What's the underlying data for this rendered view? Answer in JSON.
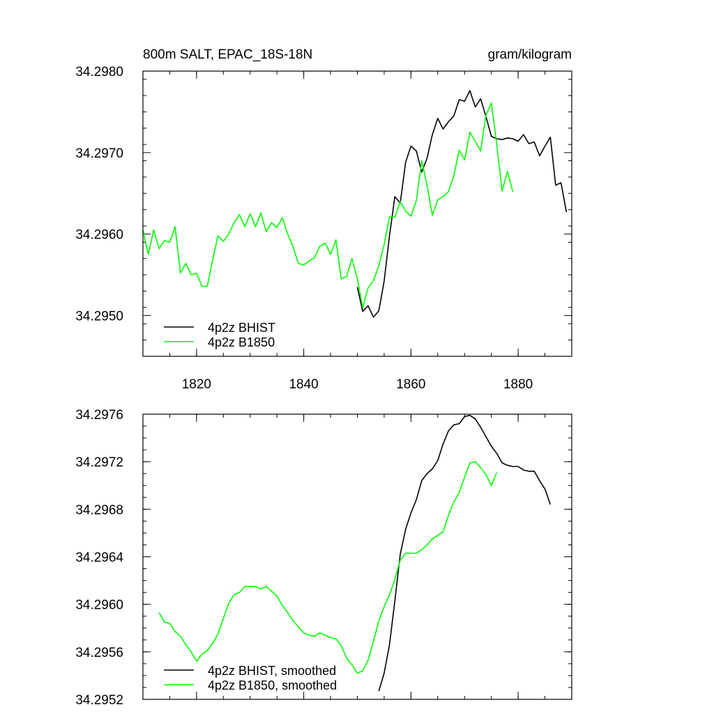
{
  "colors": {
    "bhist": "#000000",
    "b1850": "#00ff00"
  },
  "chart_data": [
    {
      "type": "line",
      "title": "800m SALT, EPAC_18S-18N",
      "units": "gram/kilogram",
      "xlim": [
        1810,
        1890
      ],
      "ylim": [
        34.2945,
        34.298
      ],
      "xticks": [
        1820,
        1840,
        1860,
        1880
      ],
      "xtick_labels": [
        "1820",
        "1840",
        "1860",
        "1880"
      ],
      "yticks": [
        34.295,
        34.296,
        34.297,
        34.298
      ],
      "ytick_labels": [
        "34.2950",
        "34.2960",
        "34.2970",
        "34.2980"
      ],
      "legend_position": "bottom-left",
      "series": [
        {
          "name": "4p2z BHIST",
          "color_key": "bhist",
          "x": [
            1850,
            1851,
            1852,
            1853,
            1854,
            1855,
            1856,
            1857,
            1858,
            1859,
            1860,
            1861,
            1862,
            1863,
            1864,
            1865,
            1866,
            1867,
            1868,
            1869,
            1870,
            1871,
            1872,
            1873,
            1874,
            1875,
            1876,
            1877,
            1878,
            1879,
            1880,
            1881,
            1882,
            1883,
            1884,
            1885,
            1886,
            1887,
            1888,
            1889
          ],
          "y": [
            34.29535,
            34.29505,
            34.29512,
            34.29498,
            34.29506,
            34.29542,
            34.29598,
            34.29646,
            34.29638,
            34.29688,
            34.29708,
            34.29702,
            34.29676,
            34.29693,
            34.29722,
            34.29742,
            34.29729,
            34.29738,
            34.29745,
            34.29765,
            34.29763,
            34.29776,
            34.29756,
            34.29766,
            34.29744,
            34.2972,
            34.29717,
            34.29716,
            34.29718,
            34.29717,
            34.29714,
            34.29722,
            34.29711,
            34.29713,
            34.29696,
            34.29708,
            34.29719,
            34.2966,
            34.29663,
            34.29627
          ]
        },
        {
          "name": "4p2z B1850",
          "color_key": "b1850",
          "x": [
            1810,
            1811,
            1812,
            1813,
            1814,
            1815,
            1816,
            1817,
            1818,
            1819,
            1820,
            1821,
            1822,
            1823,
            1824,
            1825,
            1826,
            1827,
            1828,
            1829,
            1830,
            1831,
            1832,
            1833,
            1834,
            1835,
            1836,
            1837,
            1838,
            1839,
            1840,
            1841,
            1842,
            1843,
            1844,
            1845,
            1846,
            1847,
            1848,
            1849,
            1850,
            1851,
            1852,
            1853,
            1854,
            1855,
            1856,
            1857,
            1858,
            1859,
            1860,
            1861,
            1862,
            1863,
            1864,
            1865,
            1866,
            1867,
            1868,
            1869,
            1870,
            1871,
            1872,
            1873,
            1874,
            1875,
            1876,
            1877,
            1878,
            1879
          ],
          "y": [
            34.29605,
            34.29575,
            34.29605,
            34.29582,
            34.29592,
            34.2959,
            34.29609,
            34.29552,
            34.29564,
            34.2955,
            34.29552,
            34.29536,
            34.29536,
            34.29568,
            34.29598,
            34.29591,
            34.296,
            34.29614,
            34.29624,
            34.29609,
            34.29625,
            34.29609,
            34.29626,
            34.29603,
            34.29614,
            34.29608,
            34.2962,
            34.296,
            34.29584,
            34.29564,
            34.29562,
            34.29567,
            34.29571,
            34.29585,
            34.29589,
            34.29575,
            34.29593,
            34.29545,
            34.29548,
            34.2957,
            34.29545,
            34.2951,
            34.29534,
            34.29543,
            34.29561,
            34.29587,
            34.29621,
            34.29621,
            34.2964,
            34.29628,
            34.29622,
            34.29641,
            34.2969,
            34.2966,
            34.29623,
            34.29642,
            34.29646,
            34.29652,
            34.29672,
            34.29703,
            34.29691,
            34.29725,
            34.29714,
            34.29702,
            34.29746,
            34.29761,
            34.2971,
            34.29653,
            34.29677,
            34.29652
          ]
        }
      ]
    },
    {
      "type": "line",
      "xlim": [
        1810,
        1890
      ],
      "ylim": [
        34.2952,
        34.2976
      ],
      "xticks": [
        1820,
        1840,
        1860,
        1880
      ],
      "yticks": [
        34.2952,
        34.2956,
        34.296,
        34.2964,
        34.2968,
        34.2972,
        34.2976
      ],
      "ytick_labels": [
        "34.2952",
        "34.2956",
        "34.2960",
        "34.2964",
        "34.2968",
        "34.2972",
        "34.2976"
      ],
      "legend_position": "bottom-left",
      "series": [
        {
          "name": "4p2z BHIST, smoothed",
          "color_key": "bhist",
          "x": [
            1854,
            1855,
            1856,
            1857,
            1858,
            1859,
            1860,
            1861,
            1862,
            1863,
            1864,
            1865,
            1866,
            1867,
            1868,
            1869,
            1870,
            1871,
            1872,
            1873,
            1874,
            1875,
            1876,
            1877,
            1878,
            1879,
            1880,
            1881,
            1882,
            1883,
            1884,
            1885,
            1886
          ],
          "y": [
            34.29527,
            34.29542,
            34.29566,
            34.29603,
            34.29642,
            34.29663,
            34.29677,
            34.29688,
            34.29704,
            34.2971,
            34.29714,
            34.29721,
            34.29735,
            34.29746,
            34.29751,
            34.29752,
            34.29758,
            34.29759,
            34.29756,
            34.29749,
            34.29741,
            34.29733,
            34.29727,
            34.29719,
            34.29717,
            34.29716,
            34.29716,
            34.29713,
            34.29712,
            34.29712,
            34.29704,
            34.29697,
            34.29684
          ]
        },
        {
          "name": "4p2z B1850, smoothed",
          "color_key": "b1850",
          "x": [
            1813,
            1814,
            1815,
            1816,
            1817,
            1818,
            1819,
            1820,
            1821,
            1822,
            1823,
            1824,
            1825,
            1826,
            1827,
            1828,
            1829,
            1830,
            1831,
            1832,
            1833,
            1834,
            1835,
            1836,
            1837,
            1838,
            1839,
            1840,
            1841,
            1842,
            1843,
            1844,
            1845,
            1846,
            1847,
            1848,
            1849,
            1850,
            1851,
            1852,
            1853,
            1854,
            1855,
            1856,
            1857,
            1858,
            1859,
            1860,
            1861,
            1862,
            1863,
            1864,
            1865,
            1866,
            1867,
            1868,
            1869,
            1870,
            1871,
            1872,
            1873,
            1874,
            1875,
            1876
          ],
          "y": [
            34.29593,
            34.29585,
            34.29584,
            34.29577,
            34.29573,
            34.29566,
            34.2956,
            34.29552,
            34.29558,
            34.29561,
            34.29567,
            34.29575,
            34.29588,
            34.29601,
            34.29608,
            34.2961,
            34.29615,
            34.29615,
            34.29615,
            34.29613,
            34.29615,
            34.29611,
            34.29607,
            34.29599,
            34.29593,
            34.29586,
            34.29581,
            34.29576,
            34.29574,
            34.29573,
            34.29576,
            34.29574,
            34.29572,
            34.29571,
            34.29565,
            34.29555,
            34.29549,
            34.29542,
            34.29544,
            34.29553,
            34.29569,
            34.29586,
            34.29598,
            34.29608,
            34.29621,
            34.29637,
            34.29643,
            34.29643,
            34.29643,
            34.29646,
            34.2965,
            34.29655,
            34.29658,
            34.29661,
            34.29675,
            34.29686,
            34.29694,
            34.29707,
            34.29719,
            34.2972,
            34.29715,
            34.29709,
            34.297,
            34.29711
          ]
        }
      ]
    }
  ]
}
